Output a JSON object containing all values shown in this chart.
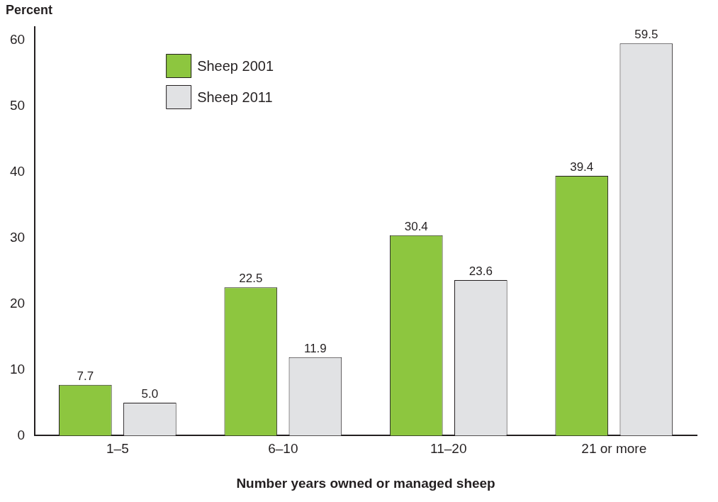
{
  "chart_data": {
    "type": "bar",
    "xlabel": "Number years owned or managed sheep",
    "ylabel": "Percent",
    "categories": [
      "1–5",
      "6–10",
      "11–20",
      "21 or more"
    ],
    "series": [
      {
        "name": "Sheep 2001",
        "color": "#8dc63f",
        "values": [
          7.7,
          22.5,
          30.4,
          39.4
        ],
        "value_labels": [
          "7.7",
          "22.5",
          "30.4",
          "39.4"
        ]
      },
      {
        "name": "Sheep 2011",
        "color": "#e1e2e4",
        "values": [
          5.0,
          11.9,
          23.6,
          59.5
        ],
        "value_labels": [
          "5.0",
          "11.9",
          "23.6",
          "59.5"
        ]
      }
    ],
    "ylim": [
      0,
      62
    ],
    "yticks": [
      0,
      10,
      20,
      30,
      40,
      50,
      60
    ],
    "grid": false,
    "legend": "top left"
  }
}
